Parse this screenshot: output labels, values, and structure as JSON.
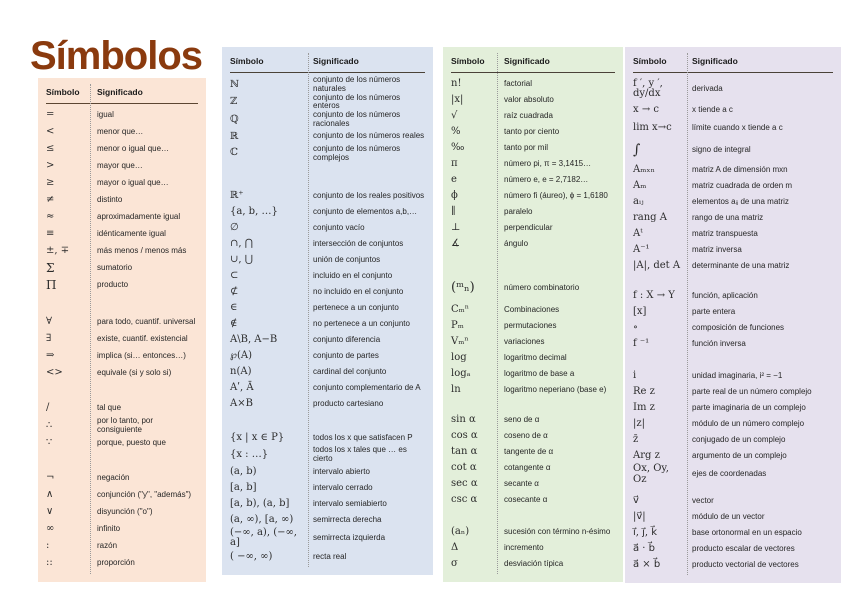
{
  "title": "Símbolos",
  "header": {
    "symbol": "Símbolo",
    "meaning": "Significado"
  },
  "colors": {
    "title": "#8a3a0e",
    "panel_basic": "#fbe5d6",
    "panel_sets": "#dbe3f0",
    "panel_arith": "#e3efda",
    "panel_calc": "#e6e1ee"
  },
  "panels": [
    {
      "bg": "#fbe5d6",
      "rows": [
        {
          "s": "=",
          "m": "igual"
        },
        {
          "s": "<",
          "m": "menor que…"
        },
        {
          "s": "≤",
          "m": "menor o igual que…"
        },
        {
          "s": ">",
          "m": "mayor que…"
        },
        {
          "s": "≥",
          "m": "mayor o igual que…"
        },
        {
          "s": "≠",
          "m": "distinto"
        },
        {
          "s": "≈",
          "m": "aproximadamente igual"
        },
        {
          "s": "≡",
          "m": "idénticamente igual"
        },
        {
          "s": "±, ∓",
          "m": "más menos / menos más"
        },
        {
          "s": "Σ",
          "m": "sumatorio",
          "fs": 12
        },
        {
          "s": "Π",
          "m": "producto",
          "fs": 12
        },
        {
          "sp": 20
        },
        {
          "s": "∀",
          "m": "para todo, cuantif. universal"
        },
        {
          "s": "∃",
          "m": "existe, cuantif. existencial"
        },
        {
          "s": "⇒",
          "m": "implica (si… entonces…)"
        },
        {
          "s": "<>",
          "m": "equivale (si y solo si)"
        },
        {
          "sp": 18
        },
        {
          "s": "/",
          "m": "tal que"
        },
        {
          "s": "∴",
          "m": "por lo tanto, por consiguiente"
        },
        {
          "s": "∵",
          "m": "porque, puesto que"
        },
        {
          "sp": 18
        },
        {
          "s": "¬",
          "m": "negación"
        },
        {
          "s": "∧",
          "m": "conjunción  (\"y\", \"además\")"
        },
        {
          "s": "∨",
          "m": "disyunción (\"o\")"
        },
        {
          "s": "∞",
          "m": "infinito"
        },
        {
          "s": ":",
          "m": "razón"
        },
        {
          "s": "::",
          "m": "proporción"
        }
      ]
    },
    {
      "bg": "#dbe3f0",
      "rows": [
        {
          "s": "ℕ",
          "m": "conjunto de los números naturales"
        },
        {
          "s": "ℤ",
          "m": "conjunto de los números enteros"
        },
        {
          "s": "ℚ",
          "m": "conjunto de los números racionales"
        },
        {
          "s": "ℝ",
          "m": "conjunto de los números reales"
        },
        {
          "s": "ℂ",
          "m": "conjunto de los números complejos"
        },
        {
          "sp": 26
        },
        {
          "s": "ℝ⁺",
          "m": "conjunto de los reales positivos"
        },
        {
          "s": "{a, b, …}",
          "m": "conjunto de elementos a,b,…"
        },
        {
          "s": "∅",
          "m": "conjunto vacío"
        },
        {
          "s": "∩, ⋂",
          "m": "intersección de conjuntos"
        },
        {
          "s": "∪, ⋃",
          "m": "unión de conjuntos"
        },
        {
          "s": "⊂",
          "m": "incluido en el conjunto"
        },
        {
          "s": "⊄",
          "m": "no incluido en el conjunto"
        },
        {
          "s": "∈",
          "m": "pertenece a un conjunto"
        },
        {
          "s": "∉",
          "m": "no pertenece a un conjunto"
        },
        {
          "s": "A\\B,  A−B",
          "m": "conjunto diferencia"
        },
        {
          "s": "℘(A)",
          "m": "conjunto de partes"
        },
        {
          "s": "n(A)",
          "m": "cardinal del conjunto"
        },
        {
          "s": "Aʹ, Ā",
          "m": "conjunto complementario de A"
        },
        {
          "s": "A×B",
          "m": "producto cartesiano"
        },
        {
          "sp": 18
        },
        {
          "s": "{x | x ∈ P}",
          "m": "todos los x que satisfacen P"
        },
        {
          "s": "{x : …}",
          "m": "todos los x tales que … es cierto"
        },
        {
          "s": "(a, b)",
          "m": "intervalo abierto"
        },
        {
          "s": "[a, b]",
          "m": "intervalo cerrado"
        },
        {
          "s": "[a, b), (a, b]",
          "m": "intervalo semiabierto"
        },
        {
          "s": "(a, ∞), [a, ∞)",
          "m": "semirrecta derecha"
        },
        {
          "s": "(−∞, a), (−∞, a]",
          "m": "semirrecta izquierda"
        },
        {
          "s": "( −∞, ∞)",
          "m": "recta real"
        }
      ]
    },
    {
      "bg": "#e3efda",
      "rows": [
        {
          "s": "n!",
          "m": "factorial"
        },
        {
          "s": "|x|",
          "m": "valor absoluto"
        },
        {
          "s": "√",
          "m": "raíz cuadrada"
        },
        {
          "s": "%",
          "m": "tanto por ciento"
        },
        {
          "s": "‰",
          "m": "tanto por mil"
        },
        {
          "s": "π",
          "m": "número pi, π = 3,1415…"
        },
        {
          "s": "e",
          "m": "número e, e = 2,7182…"
        },
        {
          "s": "ϕ",
          "m": "número fi (áureo), ϕ = 1,6180"
        },
        {
          "s": "∥",
          "m": "paralelo"
        },
        {
          "s": "⊥",
          "m": "perpendicular"
        },
        {
          "s": "∡",
          "m": "ángulo"
        },
        {
          "sp": 22
        },
        {
          "s": "(ᵐₙ)",
          "m": "número combinatorio",
          "h": 28,
          "fs": 13
        },
        {
          "s": "Cₘⁿ",
          "m": "Combinaciones"
        },
        {
          "s": "Pₘ",
          "m": "permutaciones"
        },
        {
          "s": "Vₘⁿ",
          "m": "variaciones"
        },
        {
          "s": "log",
          "m": "logaritmo decimal"
        },
        {
          "s": "logₐ",
          "m": "logaritmo de base a"
        },
        {
          "s": "ln",
          "m": "logaritmo neperiano (base e)"
        },
        {
          "sp": 14
        },
        {
          "s": "sin α",
          "m": "seno de α"
        },
        {
          "s": "cos α",
          "m": "coseno de α"
        },
        {
          "s": "tan α",
          "m": "tangente de α"
        },
        {
          "s": "cot α",
          "m": "cotangente α"
        },
        {
          "s": "sec α",
          "m": "secante α"
        },
        {
          "s": "csc α",
          "m": "cosecante α"
        },
        {
          "sp": 16
        },
        {
          "s": "(aₙ)",
          "m": "sucesión con término n-ésimo"
        },
        {
          "s": "Δ",
          "m": "incremento"
        },
        {
          "s": "σ",
          "m": "desviación típica"
        }
      ]
    },
    {
      "bg": "#e6e1ee",
      "rows": [
        {
          "s": "f ′, y ′, dy/dx",
          "m": "derivada",
          "h": 26
        },
        {
          "s": "x → c",
          "m": "x tiende a c"
        },
        {
          "s": "lim x→c",
          "m": "límite cuando x tiende a c",
          "h": 20
        },
        {
          "s": "∫",
          "m": "signo de integral",
          "h": 24,
          "fs": 14
        },
        {
          "s": "Aₘₓₙ",
          "m": "matriz A de dimensión mxn"
        },
        {
          "s": "Aₘ",
          "m": "matriz cuadrada de orden m"
        },
        {
          "s": "aᵢⱼ",
          "m": "elementos aᵢⱼ de una matriz"
        },
        {
          "s": "rang A",
          "m": "rango de una matriz"
        },
        {
          "s": "Aᵗ",
          "m": "matriz transpuesta"
        },
        {
          "s": "A⁻¹",
          "m": "matriz inversa"
        },
        {
          "s": "|A|, det A",
          "m": "determinante de una matriz"
        },
        {
          "sp": 14
        },
        {
          "s": "f : X → Y",
          "m": "función, aplicación"
        },
        {
          "s": "[x]",
          "m": "parte entera"
        },
        {
          "s": "∘",
          "m": "composición de funciones"
        },
        {
          "s": "f ⁻¹",
          "m": "función inversa"
        },
        {
          "sp": 16
        },
        {
          "s": "i",
          "m": "unidad imaginaria, i² = −1"
        },
        {
          "s": "Re z",
          "m": "parte real de un número complejo"
        },
        {
          "s": "Im z",
          "m": "parte imaginaria de un complejo"
        },
        {
          "s": "|z|",
          "m": "módulo de un número complejo"
        },
        {
          "s": "z̄",
          "m": "conjugado de un complejo"
        },
        {
          "s": "Arg z",
          "m": "argumento de un complejo"
        },
        {
          "s": "Ox, Oy, Oz",
          "m": "ejes de coordenadas"
        },
        {
          "sp": 8
        },
        {
          "s": "v⃗",
          "m": "vector"
        },
        {
          "s": "|v⃗|",
          "m": "módulo de un vector"
        },
        {
          "s": "i⃗, j⃗, k⃗",
          "m": "base ortonormal en un espacio"
        },
        {
          "s": "a⃗ · b⃗",
          "m": "producto escalar de vectores"
        },
        {
          "s": "a⃗ × b⃗",
          "m": "producto vectorial de vectores"
        }
      ]
    }
  ]
}
